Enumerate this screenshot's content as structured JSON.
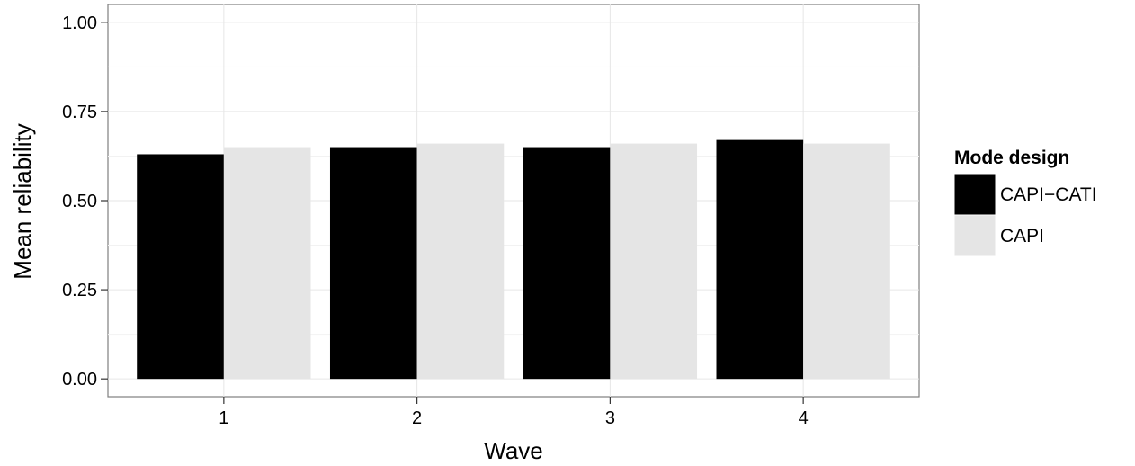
{
  "chart_data": {
    "type": "bar",
    "title": "",
    "xlabel": "Wave",
    "ylabel": "Mean reliability",
    "categories": [
      "1",
      "2",
      "3",
      "4"
    ],
    "series": [
      {
        "name": "CAPI−CATI",
        "color": "#000000",
        "values": [
          0.63,
          0.65,
          0.65,
          0.67
        ]
      },
      {
        "name": "CAPI",
        "color": "#e5e5e5",
        "values": [
          0.65,
          0.66,
          0.66,
          0.66
        ]
      }
    ],
    "ylim": [
      0,
      1
    ],
    "yticks": [
      0,
      0.25,
      0.5,
      0.75,
      1.0
    ],
    "ytick_labels": [
      "0.00",
      "0.25",
      "0.50",
      "0.75",
      "1.00"
    ],
    "grid": true,
    "legend": {
      "title": "Mode design",
      "position": "right"
    }
  }
}
